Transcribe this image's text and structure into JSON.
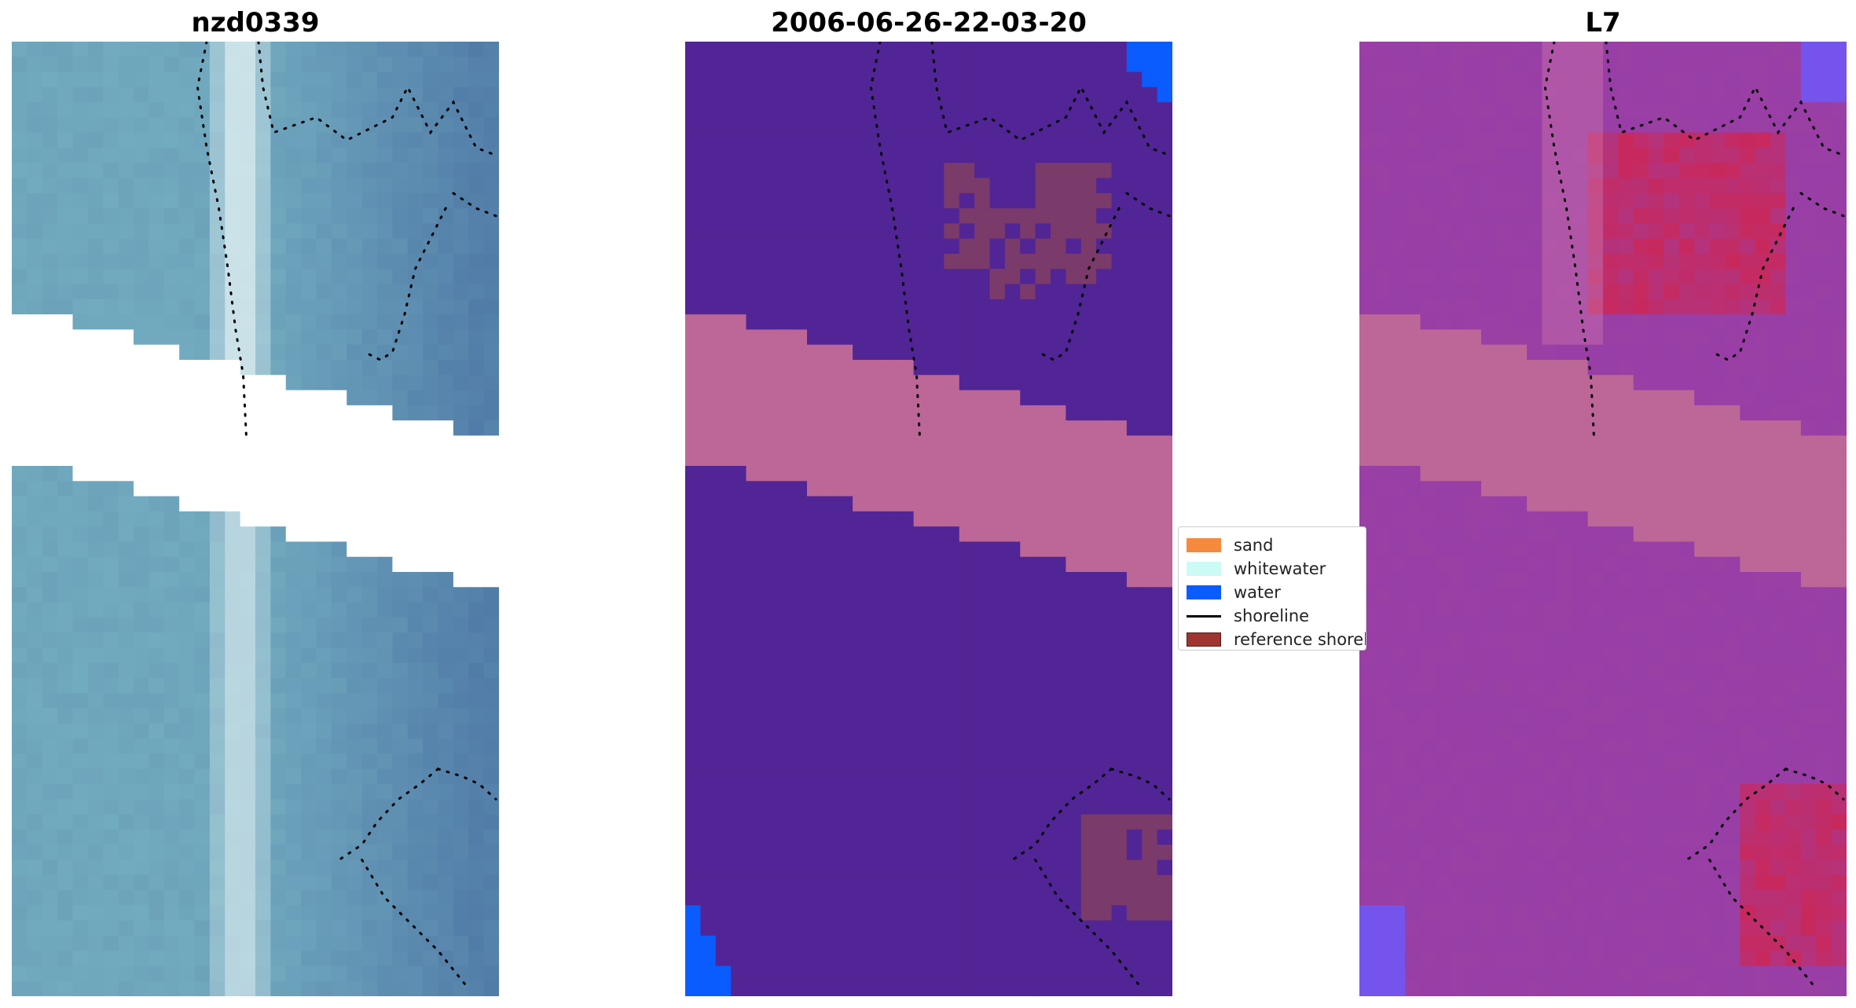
{
  "figure": {
    "panels": [
      {
        "title": "nzd0339",
        "kind": "rgb"
      },
      {
        "title": "2006-06-26-22-03-20",
        "kind": "classification"
      },
      {
        "title": "L7",
        "kind": "index"
      }
    ],
    "legend": {
      "items": [
        {
          "label": "sand",
          "type": "patch",
          "color": "#f58a3d"
        },
        {
          "label": "whitewater",
          "type": "patch",
          "color": "#ccfaf5"
        },
        {
          "label": "water",
          "type": "patch",
          "color": "#0a5cff"
        },
        {
          "label": "shoreline",
          "type": "line",
          "color": "#000000"
        },
        {
          "label": "reference shoreline",
          "type": "patch",
          "color": "#9e3530"
        }
      ]
    },
    "colors": {
      "rgb_base": "#6fa7bd",
      "rgb_dark": "#4a72a3",
      "rgb_bright": "#e8f4f6",
      "class_background": "#512595",
      "class_band": "#bc6797",
      "class_reference": "#7a3a6a",
      "class_water": "#0a5cff",
      "index_base": "#9a3fa4",
      "index_hot": "#d1254f",
      "index_band": "#bc6797",
      "index_cool": "#6b59ff",
      "nodata": "#ffffff"
    }
  }
}
